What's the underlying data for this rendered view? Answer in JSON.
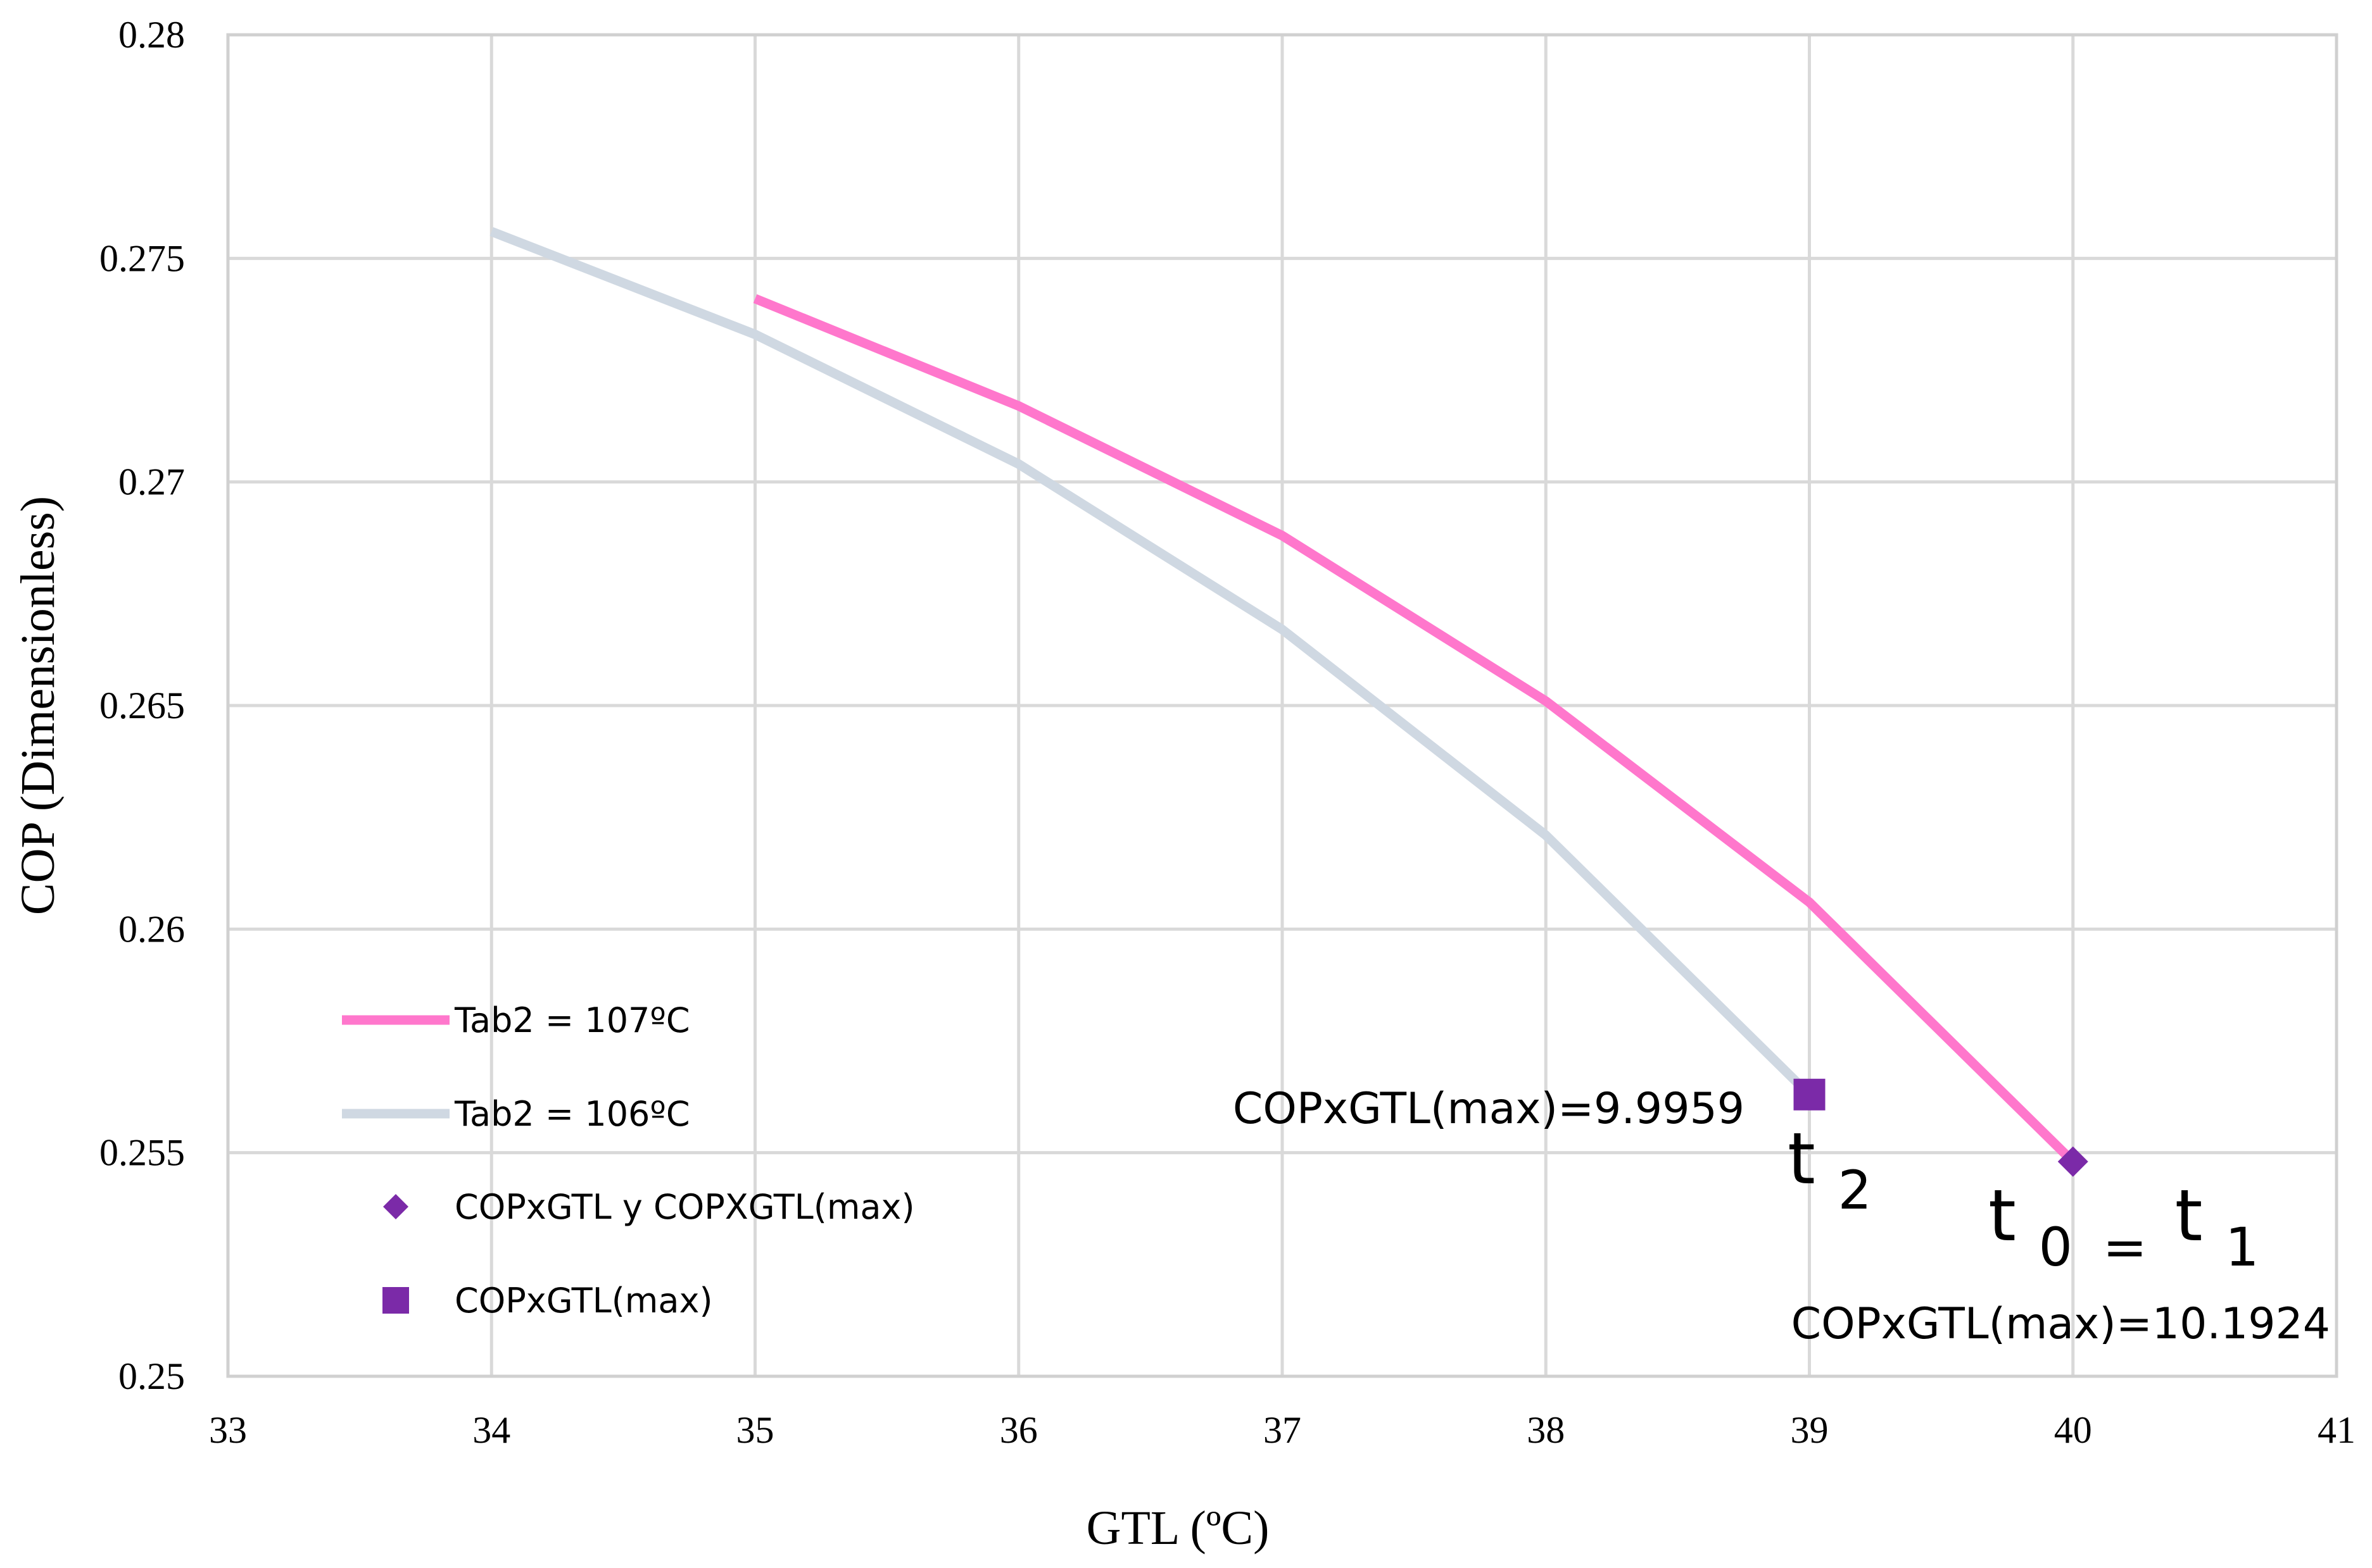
{
  "chart_data": {
    "type": "line",
    "title": "",
    "xlabel": "GTL (ºC)",
    "ylabel": "COP (Dimensionless)",
    "xlim": [
      33,
      41
    ],
    "ylim": [
      0.25,
      0.28
    ],
    "x_ticks": [
      33,
      34,
      35,
      36,
      37,
      38,
      39,
      40,
      41
    ],
    "x_tick_labels": [
      "33",
      "34",
      "35",
      "36",
      "37",
      "38",
      "39",
      "40",
      "41"
    ],
    "y_ticks": [
      0.25,
      0.255,
      0.26,
      0.265,
      0.27,
      0.275,
      0.28
    ],
    "y_tick_labels": [
      "0.25",
      "0.255",
      "0.26",
      "0.265",
      "0.27",
      "0.275",
      "0.28"
    ],
    "grid": true,
    "legend_position": "bottom-left",
    "series": [
      {
        "name": "Tab2 = 107ºC",
        "kind": "line",
        "color": "#ff77cc",
        "x": [
          35,
          36,
          37,
          38,
          39,
          40
        ],
        "y": [
          0.2741,
          0.2717,
          0.2688,
          0.2651,
          0.2606,
          0.2548
        ]
      },
      {
        "name": "Tab2 = 106ºC",
        "kind": "line",
        "color": "#cfd8e2",
        "x": [
          34,
          35,
          36,
          37,
          38,
          39
        ],
        "y": [
          0.2756,
          0.2733,
          0.2704,
          0.2667,
          0.2621,
          0.2563
        ]
      },
      {
        "name": "COPxGTL y COPXGTL(max)",
        "kind": "marker",
        "marker": "diamond",
        "color": "#7b2aa8",
        "x": [
          40
        ],
        "y": [
          0.2548
        ]
      },
      {
        "name": "COPxGTL(max)",
        "kind": "marker",
        "marker": "square",
        "color": "#7b2aa8",
        "x": [
          39
        ],
        "y": [
          0.2563
        ]
      }
    ],
    "annotations": {
      "label_106": "COPxGTL(max)=9.9959",
      "label_107": "COPxGTL(max)=10.1924",
      "t2_main": "t",
      "t2_sub": "2",
      "t0_main": "t",
      "t0_sub": "0",
      "t_eq": "=",
      "t1_main": "t",
      "t1_sub": "1"
    }
  }
}
